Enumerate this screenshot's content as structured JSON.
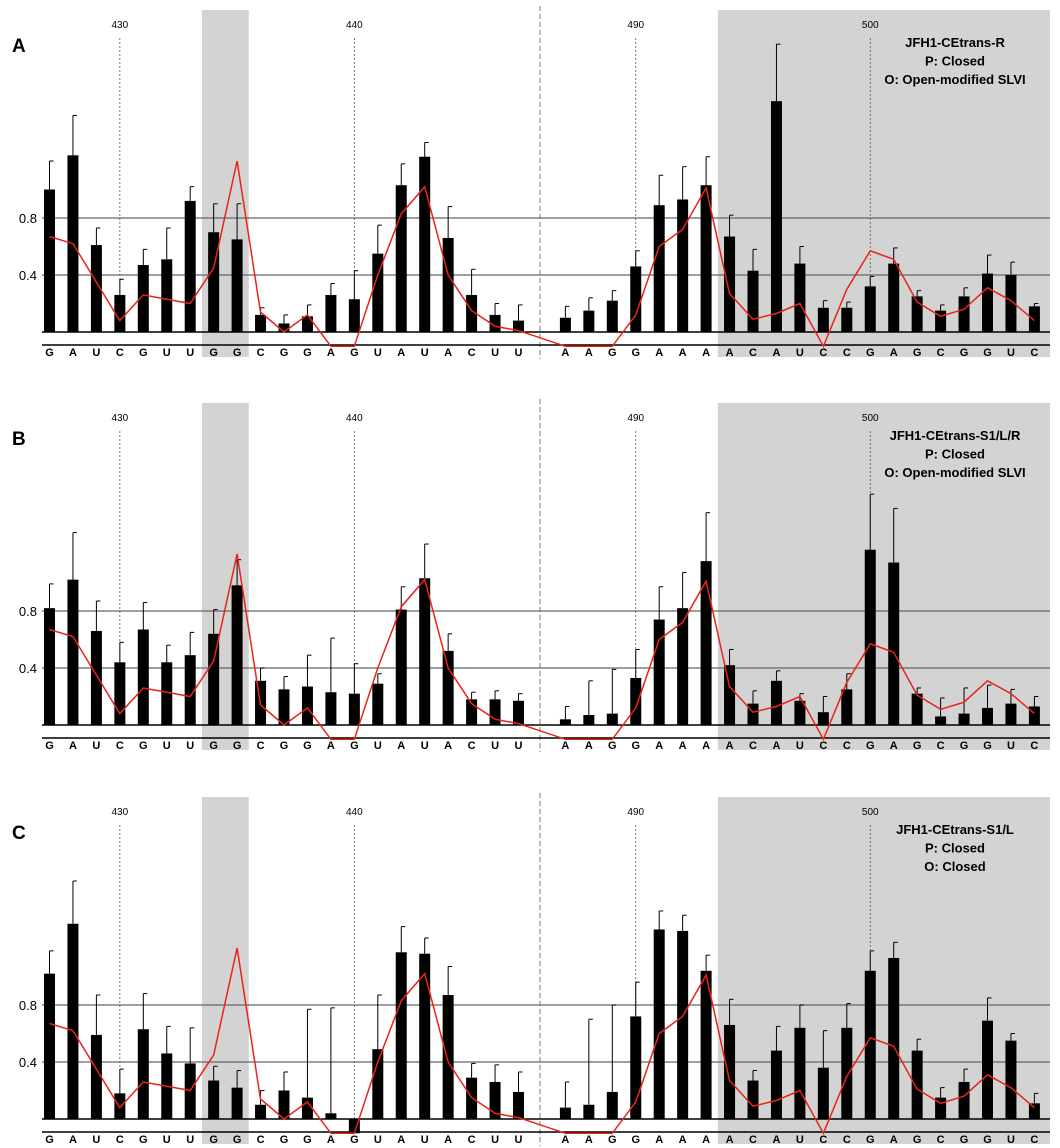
{
  "chart_data": {
    "type": "bar",
    "sequence": [
      "G",
      "A",
      "U",
      "C",
      "G",
      "U",
      "U",
      "G",
      "G",
      "C",
      "G",
      "G",
      "A",
      "G",
      "U",
      "A",
      "U",
      "A",
      "C",
      "U",
      "U",
      "",
      "A",
      "A",
      "G",
      "G",
      "A",
      "A",
      "A",
      "A",
      "C",
      "A",
      "U",
      "C",
      "C",
      "G",
      "A",
      "G",
      "C",
      "G",
      "G",
      "U",
      "C"
    ],
    "position_markers": [
      {
        "label": "430",
        "index": 3
      },
      {
        "label": "440",
        "index": 13
      },
      {
        "label": "490",
        "index": 25
      },
      {
        "label": "500",
        "index": 35
      }
    ],
    "y_ticks": [
      "0.8",
      "0.4"
    ],
    "y_tick_values": [
      0.8,
      0.4
    ],
    "shaded_ranges": [
      [
        7,
        8
      ],
      [
        29,
        42
      ]
    ],
    "sequence_break_after_index": 20,
    "reference_line": [
      0.67,
      0.62,
      0.35,
      0.08,
      0.26,
      0.23,
      0.2,
      0.45,
      1.2,
      0.14,
      0.0,
      0.12,
      -0.1,
      -0.1,
      0.4,
      0.83,
      1.02,
      0.4,
      0.15,
      0.04,
      0.01,
      null,
      -0.1,
      -0.1,
      -0.1,
      0.12,
      0.6,
      0.72,
      1.01,
      0.27,
      0.09,
      0.13,
      0.2,
      -0.1,
      0.3,
      0.57,
      0.51,
      0.21,
      0.11,
      0.16,
      0.31,
      0.22,
      0.08
    ],
    "panels": [
      {
        "label": "A",
        "title_lines": [
          "JFH1-CEtrans-R",
          "P: Closed",
          "O: Open-modified SLVI"
        ],
        "values": [
          1.0,
          1.24,
          0.61,
          0.26,
          0.47,
          0.51,
          0.92,
          0.7,
          0.65,
          0.12,
          0.06,
          0.11,
          0.26,
          0.23,
          0.55,
          1.03,
          1.23,
          0.66,
          0.26,
          0.12,
          0.08,
          null,
          0.1,
          0.15,
          0.22,
          0.46,
          0.89,
          0.93,
          1.03,
          0.67,
          0.43,
          1.62,
          0.48,
          0.17,
          0.17,
          0.32,
          0.48,
          0.25,
          0.15,
          0.25,
          0.41,
          0.4,
          0.18
        ],
        "errors": [
          0.2,
          0.28,
          0.12,
          0.11,
          0.11,
          0.22,
          0.1,
          0.2,
          0.25,
          0.05,
          0.06,
          0.08,
          0.08,
          0.2,
          0.2,
          0.15,
          0.1,
          0.22,
          0.18,
          0.08,
          0.11,
          null,
          0.08,
          0.09,
          0.07,
          0.11,
          0.21,
          0.23,
          0.2,
          0.15,
          0.15,
          0.4,
          0.12,
          0.05,
          0.04,
          0.07,
          0.11,
          0.04,
          0.04,
          0.06,
          0.13,
          0.09,
          0.02
        ]
      },
      {
        "label": "B",
        "title_lines": [
          "JFH1-CEtrans-S1/L/R",
          "P: Closed",
          "O: Open-modified SLVI"
        ],
        "values": [
          0.82,
          1.02,
          0.66,
          0.44,
          0.67,
          0.44,
          0.49,
          0.64,
          0.98,
          0.31,
          0.25,
          0.27,
          0.23,
          0.22,
          0.29,
          0.81,
          1.03,
          0.52,
          0.18,
          0.18,
          0.17,
          null,
          0.04,
          0.07,
          0.08,
          0.33,
          0.74,
          0.82,
          1.15,
          0.42,
          0.15,
          0.31,
          0.17,
          0.09,
          0.25,
          1.23,
          1.14,
          0.22,
          0.06,
          0.08,
          0.12,
          0.15,
          0.13
        ],
        "errors": [
          0.17,
          0.33,
          0.21,
          0.14,
          0.19,
          0.12,
          0.16,
          0.17,
          0.18,
          0.09,
          0.09,
          0.22,
          0.38,
          0.21,
          0.07,
          0.16,
          0.24,
          0.12,
          0.05,
          0.06,
          0.05,
          null,
          0.09,
          0.24,
          0.31,
          0.2,
          0.23,
          0.25,
          0.34,
          0.11,
          0.09,
          0.07,
          0.05,
          0.11,
          0.11,
          0.39,
          0.38,
          0.04,
          0.13,
          0.18,
          0.16,
          0.1,
          0.07
        ]
      },
      {
        "label": "C",
        "title_lines": [
          "JFH1-CEtrans-S1/L",
          "P: Closed",
          "O: Closed"
        ],
        "values": [
          1.02,
          1.37,
          0.59,
          0.18,
          0.63,
          0.46,
          0.39,
          0.27,
          0.22,
          0.1,
          0.2,
          0.15,
          0.04,
          -0.1,
          0.49,
          1.17,
          1.16,
          0.87,
          0.29,
          0.26,
          0.19,
          null,
          0.08,
          0.1,
          0.19,
          0.72,
          1.33,
          1.32,
          1.04,
          0.66,
          0.27,
          0.48,
          0.64,
          0.36,
          0.64,
          1.04,
          1.13,
          0.48,
          0.15,
          0.26,
          0.69,
          0.55,
          0.11
        ],
        "errors": [
          0.16,
          0.3,
          0.28,
          0.17,
          0.25,
          0.19,
          0.25,
          0.1,
          0.12,
          0.1,
          0.13,
          0.62,
          0.74,
          0.0,
          0.38,
          0.18,
          0.11,
          0.2,
          0.1,
          0.12,
          0.14,
          null,
          0.18,
          0.6,
          0.61,
          0.24,
          0.13,
          0.11,
          0.11,
          0.18,
          0.07,
          0.17,
          0.16,
          0.26,
          0.17,
          0.14,
          0.11,
          0.08,
          0.07,
          0.09,
          0.16,
          0.05,
          0.07
        ]
      }
    ]
  }
}
